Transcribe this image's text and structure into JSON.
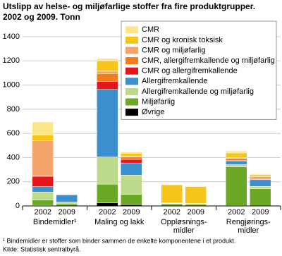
{
  "chart_data": {
    "type": "stacked_bar",
    "title": "Utslipp av helse- og miljøfarlige stoffer fra fire produktgrupper.",
    "subtitle": "2002 og 2009. Tonn",
    "categories": [
      "2002",
      "2009",
      "2002",
      "2009",
      "2002",
      "2009",
      "2002",
      "2009"
    ],
    "groups": [
      [
        "Bindemidler¹"
      ],
      [
        "Maling og lakk"
      ],
      [
        "Oppløsnings-",
        "midler"
      ],
      [
        "Rengjørings-",
        "midler"
      ]
    ],
    "series": [
      {
        "name": "CMR",
        "color": "#fde58a",
        "values": [
          110,
          2,
          20,
          10,
          5,
          5,
          17,
          8
        ]
      },
      {
        "name": "CMR og kronisk toksisk",
        "color": "#f5c518",
        "values": [
          45,
          3,
          85,
          25,
          150,
          140,
          40,
          15
        ]
      },
      {
        "name": "CMR og miljøfarlig",
        "color": "#f4a46a",
        "values": [
          290,
          3,
          20,
          5,
          2,
          2,
          5,
          10
        ]
      },
      {
        "name": "CMR, allergifremkallende og miljøfarlig",
        "color": "#f07d1e",
        "values": [
          5,
          0,
          65,
          20,
          0,
          0,
          15,
          10
        ]
      },
      {
        "name": "CMR og allergifremkallende",
        "color": "#e8141c",
        "values": [
          85,
          0,
          65,
          30,
          0,
          0,
          5,
          5
        ]
      },
      {
        "name": "Allergifremkallende",
        "color": "#3c8fcf",
        "values": [
          45,
          60,
          560,
          100,
          3,
          2,
          30,
          55
        ]
      },
      {
        "name": "Allergifremkallende og miljøfarlig",
        "color": "#bcd98c",
        "values": [
          65,
          15,
          225,
          160,
          3,
          2,
          20,
          20
        ]
      },
      {
        "name": "Miljøfarlig",
        "color": "#6aa825",
        "values": [
          45,
          15,
          155,
          85,
          15,
          12,
          320,
          140
        ]
      },
      {
        "name": "Øvrige",
        "color": "#000000",
        "values": [
          5,
          2,
          25,
          10,
          2,
          2,
          3,
          2
        ]
      }
    ],
    "ylim": [
      0,
      1400
    ],
    "yticks": [
      0,
      200,
      400,
      600,
      800,
      1000,
      1200,
      1400
    ],
    "grid": true,
    "footnotes": [
      "¹ Bindemidler er stoffer som binder sammen de enkelte komponentene i et produkt.",
      "Kilde: Statistisk sentralbyrå."
    ]
  }
}
